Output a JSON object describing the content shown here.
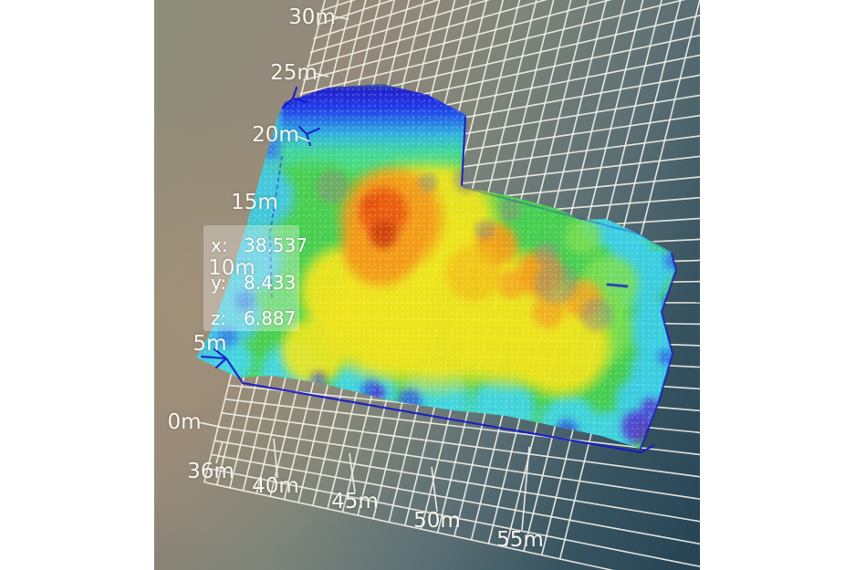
{
  "scene": {
    "description": "3D LiDAR point-cloud heatmap viewer with perspective ground grid",
    "colormap": "jet",
    "grid_color": "#f2f1e8",
    "bounding_box_color": "#1717c9",
    "background_top_left": "#8d8d7b",
    "background_bottom_right": "#264455"
  },
  "readout": {
    "x_label": "x:",
    "x_value": "38.537",
    "y_label": "y:",
    "y_value": "8.433",
    "z_label": "z:",
    "z_value": "6.887"
  },
  "axes": {
    "vertical_ticks": [
      "30m",
      "25m",
      "20m",
      "15m",
      "10m",
      "5m",
      "0m"
    ],
    "horizontal_ticks": [
      "36m",
      "40m",
      "45m",
      "50m",
      "55m"
    ],
    "unit": "m"
  },
  "chart_data": {
    "type": "heatmap",
    "title": "",
    "xlabel": "",
    "ylabel": "",
    "x_ticks_m": [
      36,
      40,
      45,
      50,
      55
    ],
    "y_ticks_m": [
      0,
      5,
      10,
      15,
      20,
      25,
      30
    ],
    "x_range_visible_m": [
      36,
      57
    ],
    "y_range_visible_m": [
      0,
      31
    ],
    "grid_cell_m": 1,
    "colormap": "jet",
    "legend_position": "none",
    "grid": true,
    "cursor_point": {
      "x": 38.537,
      "y": 8.433,
      "z": 6.887
    },
    "regions": [
      {
        "label": "primary-hotspot",
        "approx_x_m": 41,
        "approx_y_m": 16,
        "level": "high (red)"
      },
      {
        "label": "secondary-hotspots",
        "approx_x_m": 47,
        "approx_y_m": 12,
        "level": "medium-high (orange)"
      },
      {
        "label": "ridge",
        "approx_x_m": 44,
        "approx_y_m": 9,
        "level": "medium (yellow)"
      },
      {
        "label": "perimeter",
        "approx_x_m": 0,
        "approx_y_m": 0,
        "level": "low (blue/cyan edges)"
      }
    ]
  }
}
